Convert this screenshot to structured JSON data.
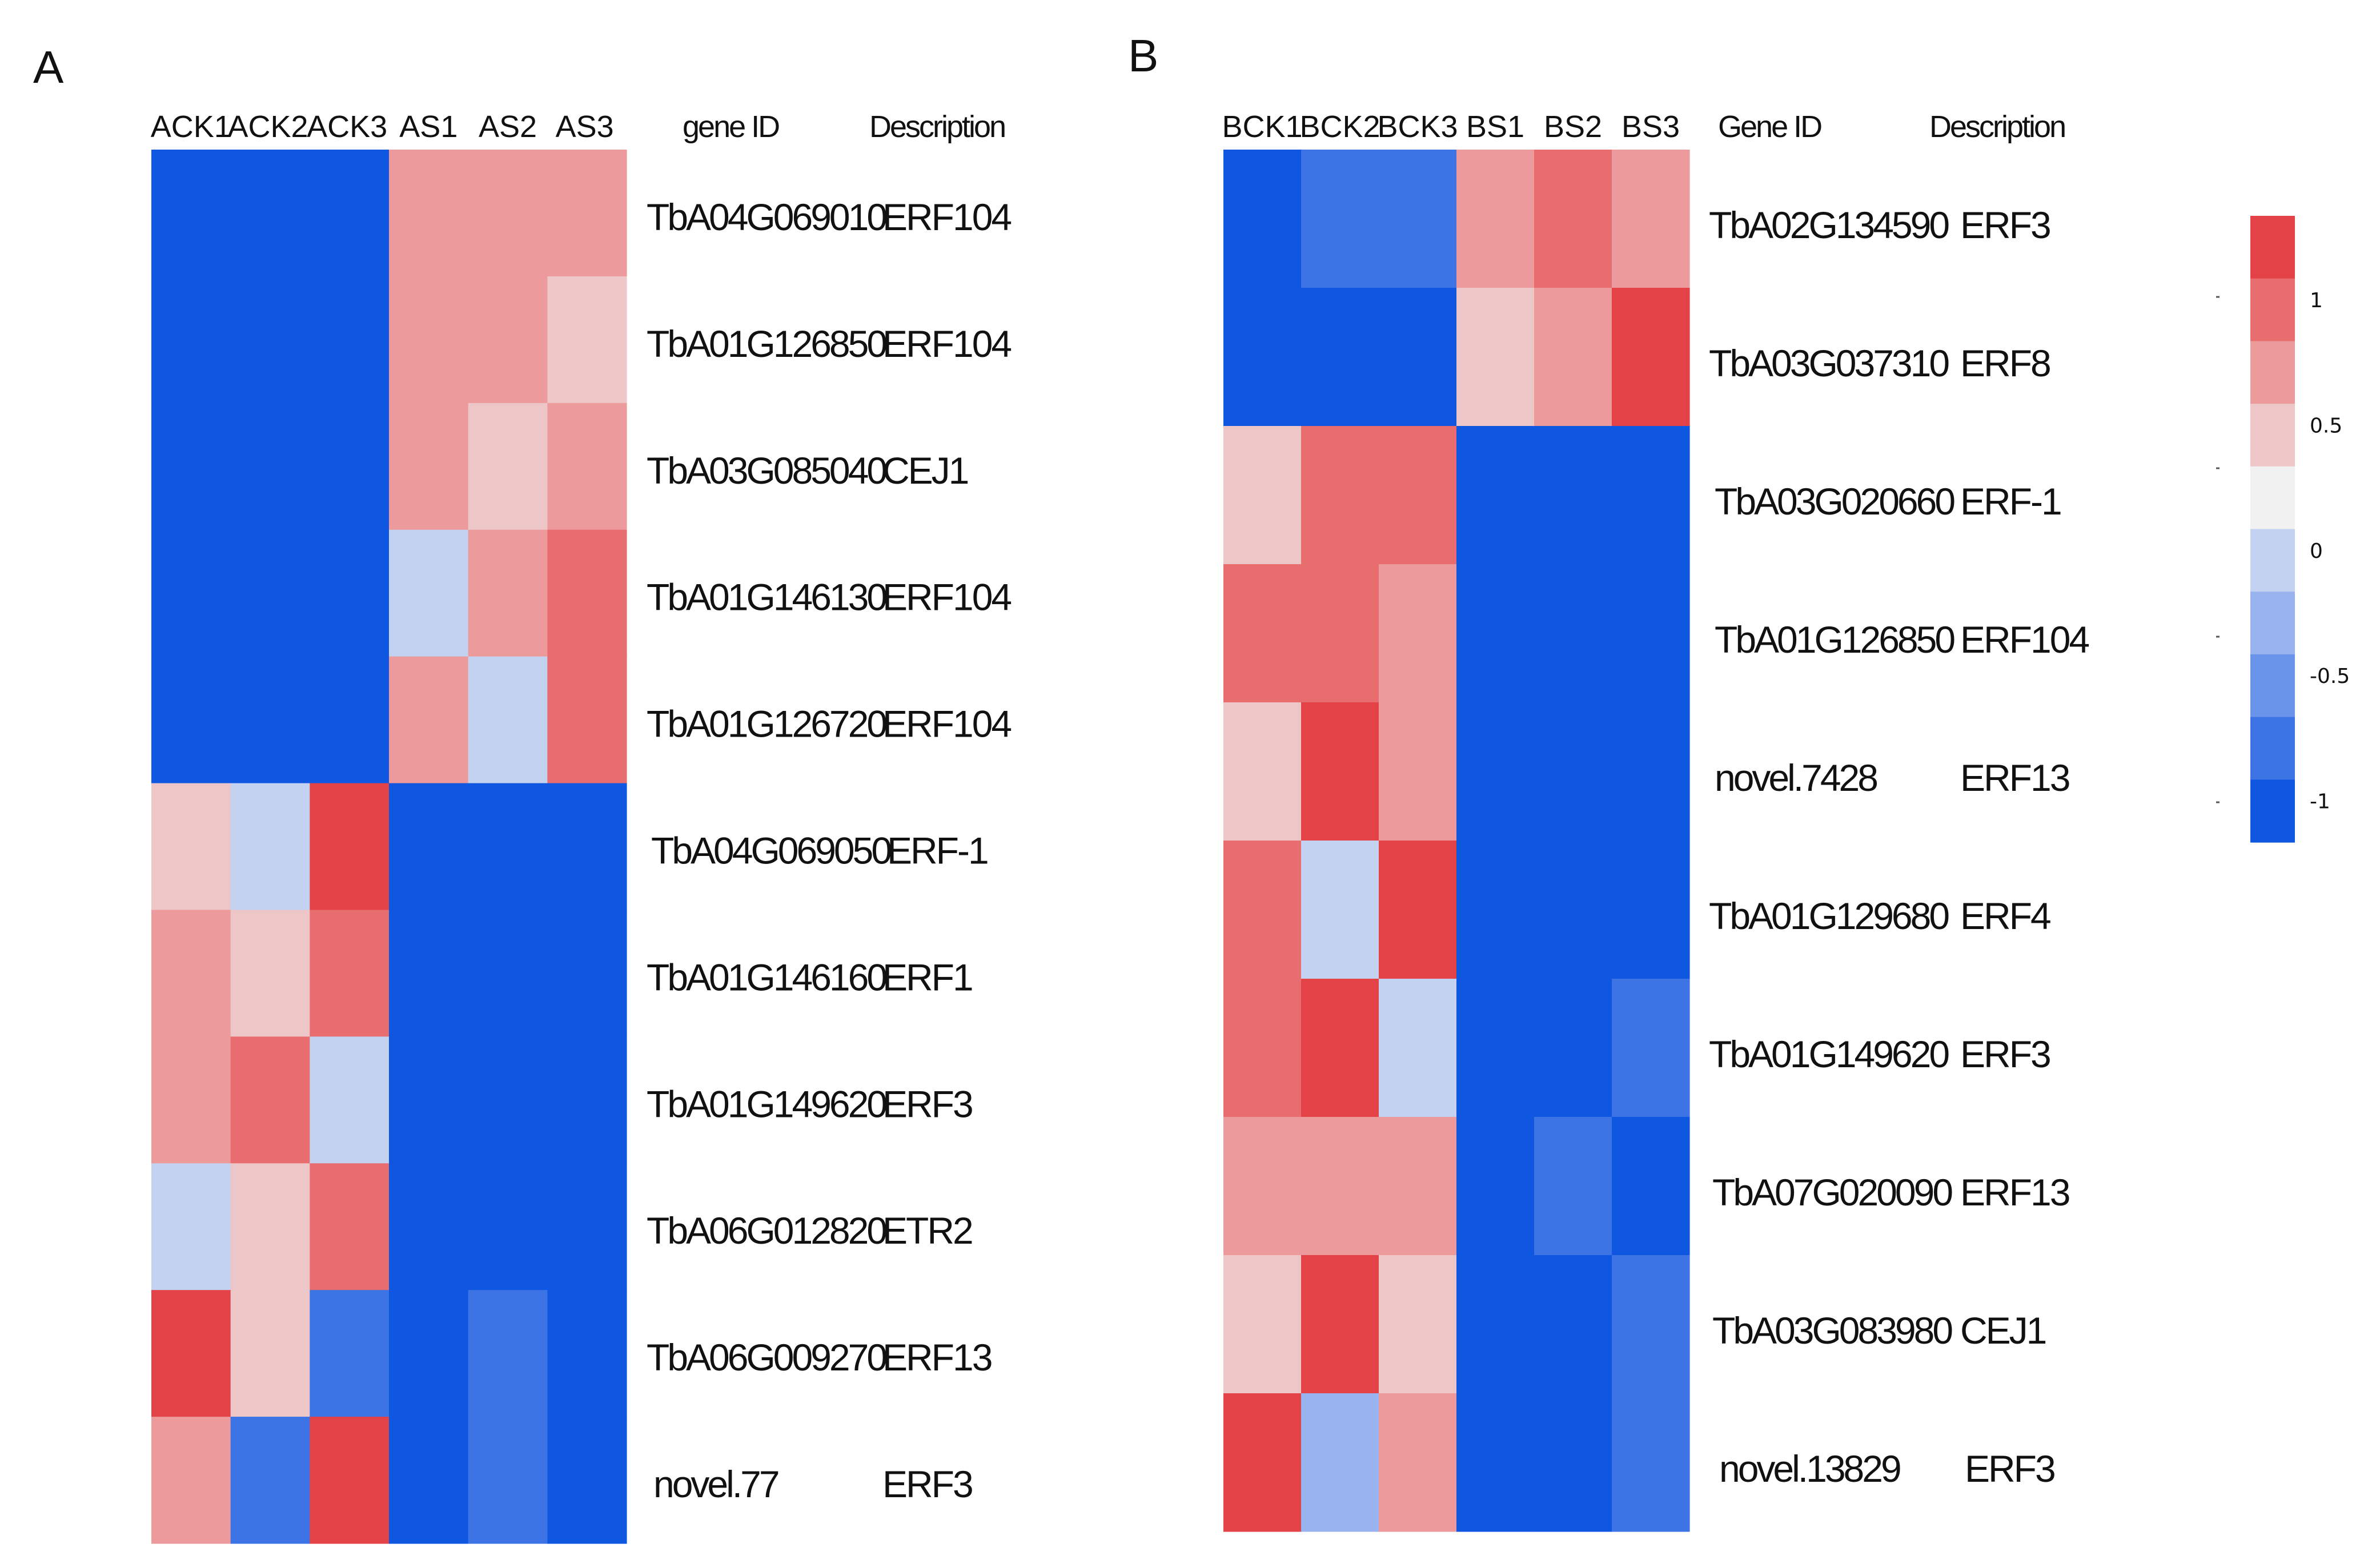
{
  "chart_data": [
    {
      "type": "heatmap",
      "panel": "A",
      "columns": [
        "ACK1",
        "ACK2",
        "ACK3",
        "AS1",
        "AS2",
        "AS3"
      ],
      "header_gene": "gene ID",
      "header_desc": "Description",
      "rows": [
        {
          "gene": "TbA04G069010",
          "desc": "ERF104",
          "values": [
            -1.25,
            -1.25,
            -1.0,
            0.75,
            0.75,
            0.75
          ]
        },
        {
          "gene": "TbA01G126850",
          "desc": "ERF104",
          "values": [
            -1.25,
            -1.25,
            -1.25,
            0.75,
            0.75,
            0.5
          ]
        },
        {
          "gene": "TbA03G085040",
          "desc": "CEJ1",
          "values": [
            -1.25,
            -1.25,
            -1.0,
            0.75,
            0.5,
            0.75
          ]
        },
        {
          "gene": "TbA01G146130",
          "desc": "ERF104",
          "values": [
            -1.25,
            -1.0,
            -1.0,
            0.0,
            0.75,
            1.0
          ]
        },
        {
          "gene": "TbA01G126720",
          "desc": "ERF104",
          "values": [
            -1.0,
            -1.25,
            -1.25,
            0.75,
            0.0,
            1.0
          ]
        },
        {
          "gene": "TbA04G069050",
          "desc": "ERF-1",
          "values": [
            0.5,
            0.0,
            1.25,
            -1.0,
            -1.25,
            -1.25
          ]
        },
        {
          "gene": "TbA01G146160",
          "desc": "ERF1",
          "values": [
            0.75,
            0.5,
            1.0,
            -1.0,
            -1.25,
            -1.25
          ]
        },
        {
          "gene": "TbA01G149620",
          "desc": "ERF3",
          "values": [
            0.75,
            1.0,
            0.0,
            -1.25,
            -1.25,
            -1.25
          ]
        },
        {
          "gene": "TbA06G012820",
          "desc": "ETR2",
          "values": [
            0.0,
            0.5,
            1.0,
            -1.25,
            -1.0,
            -1.25
          ]
        },
        {
          "gene": "TbA06G009270",
          "desc": "ERF13",
          "values": [
            1.25,
            0.5,
            -0.75,
            -1.25,
            -0.75,
            -1.0
          ]
        },
        {
          "gene": "novel.77",
          "desc": "ERF3",
          "values": [
            0.75,
            -0.75,
            1.25,
            -1.0,
            -0.75,
            -1.0
          ]
        }
      ]
    },
    {
      "type": "heatmap",
      "panel": "B",
      "columns": [
        "BCK1",
        "BCK2",
        "BCK3",
        "BS1",
        "BS2",
        "BS3"
      ],
      "header_gene": "Gene ID",
      "header_desc": "Description",
      "rows": [
        {
          "gene": "TbA02G134590",
          "desc": "ERF3",
          "values": [
            -1.25,
            -0.75,
            -0.75,
            0.75,
            1.0,
            0.75
          ]
        },
        {
          "gene": "TbA03G037310",
          "desc": "ERF8",
          "values": [
            -1.0,
            -1.0,
            -1.0,
            0.5,
            0.75,
            1.25
          ]
        },
        {
          "gene": "TbA03G020660",
          "desc": "ERF-1",
          "values": [
            0.5,
            1.0,
            1.0,
            -1.0,
            -1.0,
            -1.0
          ]
        },
        {
          "gene": "TbA01G126850",
          "desc": "ERF104",
          "values": [
            1.0,
            1.0,
            0.75,
            -1.0,
            -1.0,
            -1.0
          ]
        },
        {
          "gene": "novel.7428",
          "desc": "ERF13",
          "values": [
            0.5,
            1.25,
            0.75,
            -1.0,
            -1.0,
            -1.0
          ]
        },
        {
          "gene": "TbA01G129680",
          "desc": "ERF4",
          "values": [
            1.0,
            0.0,
            1.25,
            -1.0,
            -1.0,
            -1.0
          ]
        },
        {
          "gene": "TbA01G149620",
          "desc": "ERF3",
          "values": [
            1.0,
            1.25,
            0.0,
            -1.0,
            -1.0,
            -0.75
          ]
        },
        {
          "gene": "TbA07G020090",
          "desc": "ERF13",
          "values": [
            0.75,
            0.75,
            0.75,
            -1.0,
            -0.75,
            -1.25
          ]
        },
        {
          "gene": "TbA03G083980",
          "desc": "CEJ1",
          "values": [
            0.5,
            1.25,
            0.5,
            -1.0,
            -1.25,
            -0.75
          ]
        },
        {
          "gene": "novel.13829",
          "desc": "ERF3",
          "values": [
            1.25,
            -0.25,
            0.75,
            -1.0,
            -1.0,
            -0.75
          ]
        }
      ]
    }
  ],
  "legend": {
    "colors": [
      "#e34346",
      "#e86d6f",
      "#ec9a9b",
      "#edc7c8",
      "#f1f1f1",
      "#c3d2f1",
      "#98b3ee",
      "#6a94e9",
      "#3d74e5",
      "#0f57e1"
    ],
    "ticks": [
      "1",
      "0.5",
      "0",
      "-0.5",
      "-1"
    ]
  }
}
